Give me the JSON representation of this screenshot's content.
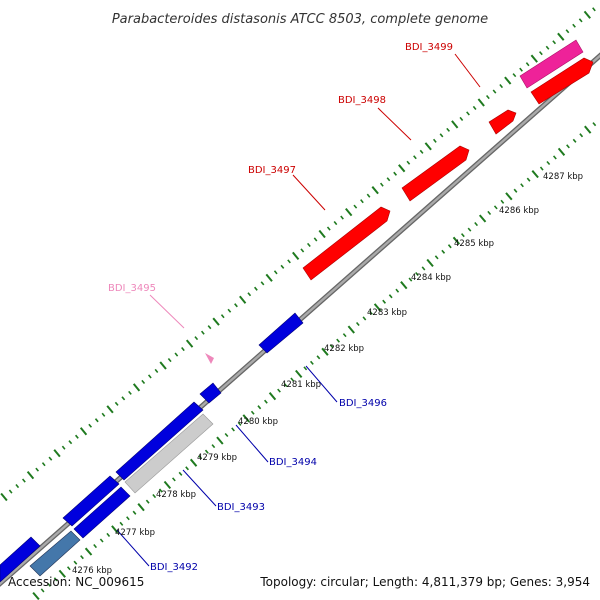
{
  "title": "Parabacteroides distasonis ATCC 8503, complete genome",
  "footer": {
    "accession": "Accession: NC_009615",
    "summary": "Topology: circular; Length: 4,811,379 bp; Genes: 3,954"
  },
  "colors": {
    "forward_gene": "#ff0000",
    "forward_gene_highlight": "#ee2299",
    "forward_gene_faint": "#ee88bb",
    "reverse_gene": "#0000dd",
    "reverse_gene_alt": "#4477aa",
    "reverse_gene_gray": "#cccccc",
    "backbone": "#888888",
    "tick": "#1f7a1f",
    "forward_label": "#cc0000",
    "reverse_label": "#0000aa"
  },
  "gene_labels": {
    "BDI_3499": "BDI_3499",
    "BDI_3498": "BDI_3498",
    "BDI_3497": "BDI_3497",
    "BDI_3495": "BDI_3495",
    "BDI_3496": "BDI_3496",
    "BDI_3494": "BDI_3494",
    "BDI_3493": "BDI_3493",
    "BDI_3492": "BDI_3492"
  },
  "kbp_ticks": [
    "4276 kbp",
    "4277 kbp",
    "4278 kbp",
    "4279 kbp",
    "4280 kbp",
    "4281 kbp",
    "4282 kbp",
    "4283 kbp",
    "4284 kbp",
    "4285 kbp",
    "4286 kbp",
    "4287 kbp"
  ]
}
